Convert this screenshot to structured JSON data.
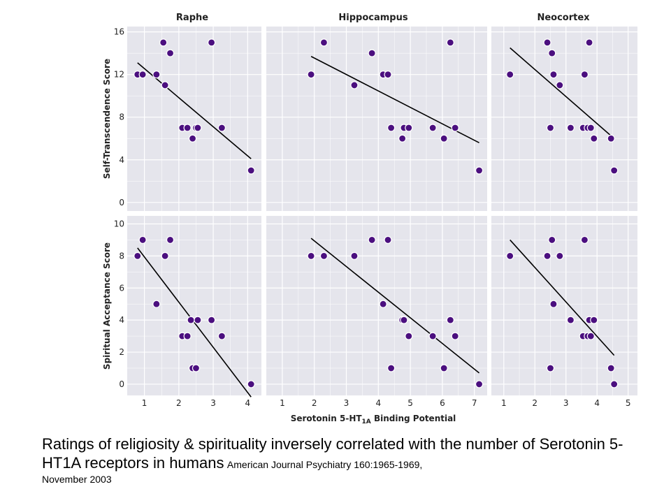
{
  "chart_data": {
    "type": "scatter",
    "panel_titles": [
      "Raphe",
      "Hippocampus",
      "Neocortex"
    ],
    "xlabel_parts": {
      "prefix": "Serotonin 5-HT",
      "sub": "1A",
      "suffix": " Binding Potential"
    },
    "x_ticks": [
      [
        "1",
        "2",
        "3",
        "4"
      ],
      [
        "1",
        "2",
        "3",
        "4",
        "5",
        "6",
        "7"
      ],
      [
        "1",
        "2",
        "3",
        "4",
        "5"
      ]
    ],
    "xlim": [
      [
        0.5,
        4.4
      ],
      [
        0.5,
        7.4
      ],
      [
        0.6,
        5.3
      ]
    ],
    "rows": [
      {
        "ylabel": "Self-Transcendence Score",
        "ylim": [
          -0.8,
          16.5
        ],
        "yticks": [
          "0",
          "4",
          "8",
          "12",
          "16"
        ],
        "panels": [
          {
            "points": [
              [
                0.8,
                12
              ],
              [
                0.95,
                12
              ],
              [
                1.35,
                12
              ],
              [
                1.55,
                15
              ],
              [
                1.6,
                11
              ],
              [
                1.75,
                14
              ],
              [
                2.1,
                7
              ],
              [
                2.25,
                7
              ],
              [
                2.4,
                6
              ],
              [
                2.5,
                7
              ],
              [
                2.55,
                7
              ],
              [
                2.95,
                15
              ],
              [
                3.25,
                7
              ],
              [
                4.1,
                3
              ]
            ],
            "fit": [
              [
                0.8,
                13.1
              ],
              [
                4.1,
                4.1
              ]
            ]
          },
          {
            "points": [
              [
                1.9,
                12
              ],
              [
                2.3,
                15
              ],
              [
                3.25,
                11
              ],
              [
                3.8,
                14
              ],
              [
                4.15,
                12
              ],
              [
                4.3,
                12
              ],
              [
                4.4,
                7
              ],
              [
                4.8,
                7
              ],
              [
                4.95,
                7
              ],
              [
                4.75,
                6
              ],
              [
                5.7,
                7
              ],
              [
                6.05,
                6
              ],
              [
                6.25,
                15
              ],
              [
                6.4,
                7
              ],
              [
                7.15,
                3
              ]
            ],
            "fit": [
              [
                1.9,
                13.7
              ],
              [
                7.15,
                5.6
              ]
            ]
          },
          {
            "points": [
              [
                1.2,
                12
              ],
              [
                2.4,
                15
              ],
              [
                2.5,
                7
              ],
              [
                2.55,
                14
              ],
              [
                2.6,
                12
              ],
              [
                2.8,
                11
              ],
              [
                3.15,
                7
              ],
              [
                3.55,
                7
              ],
              [
                3.6,
                12
              ],
              [
                3.7,
                7
              ],
              [
                3.75,
                15
              ],
              [
                3.8,
                7
              ],
              [
                3.9,
                6
              ],
              [
                4.45,
                6
              ],
              [
                4.55,
                3
              ]
            ],
            "fit": [
              [
                1.2,
                14.5
              ],
              [
                4.55,
                6.0
              ]
            ]
          }
        ]
      },
      {
        "ylabel": "Spiritual Acceptance Score",
        "ylim": [
          -0.7,
          10.5
        ],
        "yticks": [
          "0",
          "2",
          "4",
          "6",
          "8",
          "10"
        ],
        "panels": [
          {
            "points": [
              [
                0.8,
                8
              ],
              [
                0.95,
                9
              ],
              [
                1.35,
                5
              ],
              [
                1.6,
                8
              ],
              [
                1.75,
                9
              ],
              [
                2.1,
                3
              ],
              [
                2.25,
                3
              ],
              [
                2.35,
                4
              ],
              [
                2.4,
                1
              ],
              [
                2.5,
                1
              ],
              [
                2.55,
                4
              ],
              [
                2.95,
                4
              ],
              [
                3.25,
                3
              ],
              [
                4.1,
                0
              ]
            ],
            "fit": [
              [
                0.8,
                8.5
              ],
              [
                4.1,
                -0.8
              ]
            ]
          },
          {
            "points": [
              [
                1.9,
                8
              ],
              [
                2.3,
                8
              ],
              [
                3.25,
                8
              ],
              [
                3.8,
                9
              ],
              [
                4.15,
                5
              ],
              [
                4.3,
                9
              ],
              [
                4.4,
                1
              ],
              [
                4.75,
                4
              ],
              [
                4.8,
                4
              ],
              [
                4.95,
                3
              ],
              [
                5.7,
                3
              ],
              [
                6.05,
                1
              ],
              [
                6.25,
                4
              ],
              [
                6.4,
                3
              ],
              [
                7.15,
                0
              ]
            ],
            "fit": [
              [
                1.9,
                9.1
              ],
              [
                7.15,
                0.7
              ]
            ]
          },
          {
            "points": [
              [
                1.2,
                8
              ],
              [
                2.4,
                8
              ],
              [
                2.5,
                1
              ],
              [
                2.55,
                9
              ],
              [
                2.6,
                5
              ],
              [
                2.8,
                8
              ],
              [
                3.15,
                4
              ],
              [
                3.55,
                3
              ],
              [
                3.6,
                9
              ],
              [
                3.7,
                3
              ],
              [
                3.75,
                4
              ],
              [
                3.8,
                3
              ],
              [
                3.9,
                4
              ],
              [
                4.45,
                1
              ],
              [
                4.55,
                0
              ]
            ],
            "fit": [
              [
                1.2,
                9.0
              ],
              [
                4.55,
                1.8
              ]
            ]
          }
        ]
      }
    ]
  },
  "colors": {
    "panel_bg": "#e5e5ec",
    "grid": "#ffffff",
    "point": "#4b0f7f",
    "point_edge": "#ffffff",
    "line": "#000000"
  },
  "caption": {
    "main": "Ratings of religiosity & spirituality inversely correlated with the number of Serotonin 5-HT1A receptors in humans",
    "source": "American Journal Psychiatry 160:1965-1969,",
    "date": "November 2003"
  }
}
